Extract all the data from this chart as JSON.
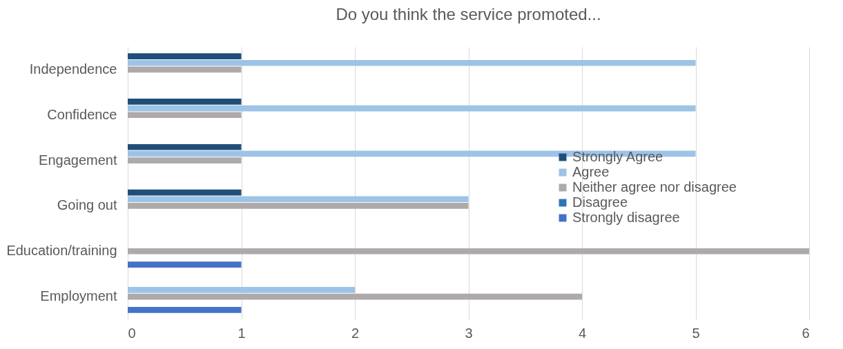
{
  "chart_data": {
    "type": "bar",
    "orientation": "horizontal",
    "title": "Do you think the service promoted...",
    "categories": [
      "Independence",
      "Confidence",
      "Engagement",
      "Going out",
      "Education/training",
      "Employment"
    ],
    "series": [
      {
        "name": "Strongly Agree",
        "color": "#1f4e79",
        "values": [
          1,
          1,
          1,
          1,
          0,
          0
        ]
      },
      {
        "name": "Agree",
        "color": "#9dc3e6",
        "values": [
          5,
          5,
          5,
          3,
          0,
          2
        ]
      },
      {
        "name": "Neither agree nor disagree",
        "color": "#aeaaaa",
        "values": [
          1,
          1,
          1,
          3,
          6,
          4
        ]
      },
      {
        "name": "Disagree",
        "color": "#2e75b6",
        "values": [
          0,
          0,
          0,
          0,
          0,
          0
        ]
      },
      {
        "name": "Strongly disagree",
        "color": "#4472c4",
        "values": [
          0,
          0,
          0,
          0,
          1,
          1
        ]
      }
    ],
    "xlim": [
      0,
      6
    ],
    "xticks": [
      0,
      1,
      2,
      3,
      4,
      5,
      6
    ],
    "grid": "x",
    "legend": "right"
  }
}
